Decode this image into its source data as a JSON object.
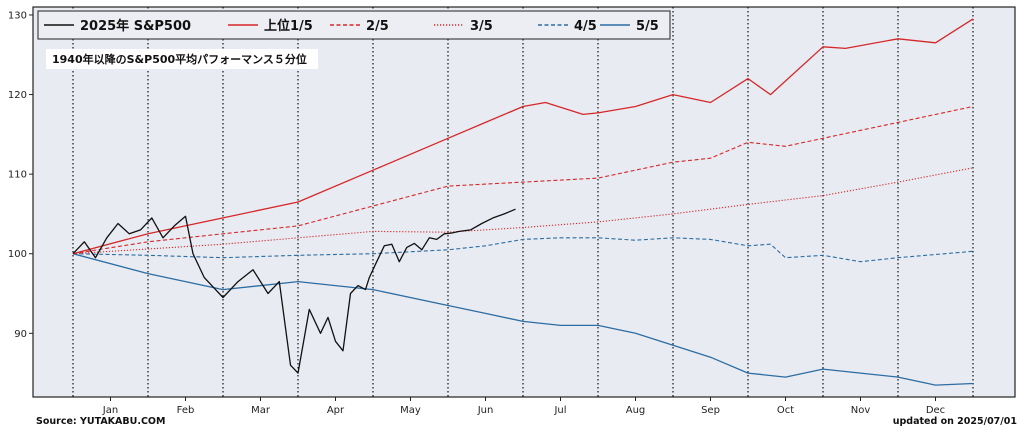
{
  "chart_data": {
    "type": "line",
    "annotation": "1940年以降のS&P500平均パフォーマンス５分位",
    "source": "Source: YUTAKABU.COM",
    "updated": "updated on 2025/07/01",
    "ylim": [
      82,
      131
    ],
    "yticks": [
      90,
      100,
      110,
      120,
      130
    ],
    "months": [
      "Jan",
      "Feb",
      "Mar",
      "Apr",
      "May",
      "Jun",
      "Jul",
      "Aug",
      "Sep",
      "Oct",
      "Nov",
      "Dec"
    ],
    "legend_placement": "top-left",
    "grid": "vertical dotted lines at month boundaries",
    "colors": {
      "background": "#e9ebf2",
      "black": "#111111",
      "red": "#d62728",
      "blue": "#2c6da3"
    },
    "series": [
      {
        "name": "2025年 S&P500",
        "color": "#111111",
        "style": "solid",
        "x": [
          0,
          0.15,
          0.3,
          0.45,
          0.6,
          0.75,
          0.9,
          1.05,
          1.2,
          1.35,
          1.5,
          1.6,
          1.75,
          1.85,
          2.0,
          2.2,
          2.4,
          2.6,
          2.75,
          2.9,
          3.0,
          3.15,
          3.3,
          3.4,
          3.5,
          3.6,
          3.7,
          3.8,
          3.9,
          3.95,
          4.05,
          4.15,
          4.25,
          4.35,
          4.45,
          4.55,
          4.65,
          4.75,
          4.85,
          4.95,
          5.05,
          5.15,
          5.3,
          5.45,
          5.6,
          5.75,
          5.9
        ],
        "y": [
          100,
          101.5,
          99.5,
          102,
          103.8,
          102.5,
          103,
          104.5,
          102,
          103.5,
          104.7,
          100,
          97,
          96,
          94.5,
          96.5,
          98,
          95,
          96.5,
          86,
          85,
          93,
          90,
          92,
          89,
          87.8,
          95,
          96,
          95.5,
          97,
          99,
          101,
          101.2,
          99,
          100.8,
          101.3,
          100.5,
          102,
          101.8,
          102.5,
          102.6,
          102.8,
          103,
          103.8,
          104.5,
          105,
          105.6
        ]
      },
      {
        "name": "上位1/5",
        "color": "#d62728",
        "style": "solid",
        "x": [
          0,
          1,
          2,
          3,
          4,
          5,
          5.5,
          6,
          6.3,
          6.8,
          7,
          7.5,
          8,
          8.5,
          9,
          9.3,
          10,
          10.3,
          11,
          11.5,
          12
        ],
        "y": [
          100,
          102.5,
          104.5,
          106.5,
          110.5,
          114.5,
          116.5,
          118.5,
          119,
          117.5,
          117.7,
          118.5,
          120,
          119,
          122,
          120,
          126,
          125.8,
          127,
          126.5,
          129.5
        ]
      },
      {
        "name": "2/5",
        "color": "#d62728",
        "style": "dashed",
        "x": [
          0,
          1,
          2,
          3,
          4,
          5,
          6,
          7,
          8,
          8.5,
          9,
          9.5,
          10,
          11,
          12
        ],
        "y": [
          100,
          101.5,
          102.5,
          103.5,
          106,
          108.5,
          109,
          109.5,
          111.5,
          112,
          114,
          113.5,
          114.5,
          116.5,
          118.5
        ]
      },
      {
        "name": "3/5",
        "color": "#d62728",
        "style": "dotted",
        "x": [
          0,
          1,
          2,
          3,
          4,
          5,
          6,
          7,
          8,
          9,
          10,
          11,
          12
        ],
        "y": [
          100,
          100.6,
          101.2,
          102,
          102.8,
          102.7,
          103.3,
          104,
          105,
          106.2,
          107.3,
          109,
          110.8
        ]
      },
      {
        "name": "4/5",
        "color": "#2c6da3",
        "style": "dashed",
        "x": [
          0,
          1,
          2,
          3,
          4,
          5,
          5.5,
          6,
          6.5,
          7,
          7.5,
          8,
          8.5,
          9,
          9.3,
          9.5,
          10,
          10.5,
          11,
          12
        ],
        "y": [
          100,
          99.8,
          99.5,
          99.8,
          100,
          100.5,
          101,
          101.8,
          102,
          102,
          101.7,
          102,
          101.8,
          101,
          101.2,
          99.5,
          99.8,
          99,
          99.5,
          100.3
        ]
      },
      {
        "name": "5/5",
        "color": "#2c6da3",
        "style": "solid",
        "x": [
          0,
          1,
          2,
          3,
          4,
          5,
          5.5,
          6,
          6.5,
          7,
          7.5,
          8,
          8.5,
          9,
          9.5,
          10,
          10.5,
          11,
          11.5,
          12
        ],
        "y": [
          100,
          97.5,
          95.5,
          96.5,
          95.5,
          93.5,
          92.5,
          91.5,
          91,
          91,
          90,
          88.5,
          87,
          85,
          84.5,
          85.5,
          85,
          84.5,
          83.5,
          83.7
        ]
      }
    ]
  }
}
